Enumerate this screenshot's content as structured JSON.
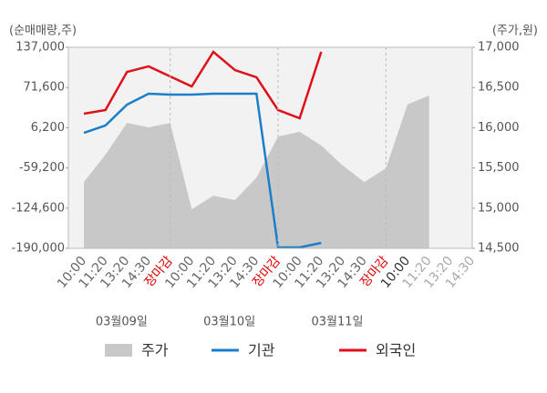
{
  "chart_data": {
    "type": "line",
    "y_axis_label": "(순매매량,주)",
    "y2_axis_label": "(주가,원)",
    "categories": [
      "10:00",
      "11:20",
      "13:20",
      "14:30",
      "장마감",
      "10:00",
      "11:20",
      "13:20",
      "14:30",
      "장마감",
      "10:00",
      "11:20",
      "13:20",
      "14:30",
      "장마감",
      "10:00",
      "11:20",
      "13:20",
      "14:30"
    ],
    "category_colors": [
      "#666",
      "#666",
      "#666",
      "#666",
      "#e00000",
      "#666",
      "#666",
      "#666",
      "#666",
      "#e00000",
      "#666",
      "#666",
      "#666",
      "#666",
      "#e00000",
      "#333",
      "#aaa",
      "#aaa",
      "#aaa"
    ],
    "date_labels": [
      "03월09일",
      "03월10일",
      "03월11일"
    ],
    "ylim": [
      -190000,
      137000
    ],
    "yticks": [
      {
        "value": -190000,
        "label": "-190,000"
      },
      {
        "value": -124600,
        "label": "-124,600"
      },
      {
        "value": -59200,
        "label": "-59,200"
      },
      {
        "value": 6200,
        "label": "6,200"
      },
      {
        "value": 71600,
        "label": "71,600"
      },
      {
        "value": 137000,
        "label": "137,000"
      }
    ],
    "y2lim": [
      14500,
      17000
    ],
    "y2ticks": [
      {
        "value": 14500,
        "label": "14,500"
      },
      {
        "value": 15000,
        "label": "15,000"
      },
      {
        "value": 15500,
        "label": "15,500"
      },
      {
        "value": 16000,
        "label": "16,000"
      },
      {
        "value": 16500,
        "label": "16,500"
      },
      {
        "value": 17000,
        "label": "17,000"
      }
    ],
    "series": [
      {
        "name": "주가",
        "color": "#c8c8c8",
        "axis": "y2",
        "kind": "area",
        "values": [
          15325,
          15665,
          16060,
          16005,
          16060,
          14985,
          15155,
          15100,
          15380,
          15890,
          15950,
          15780,
          15530,
          15325,
          15495,
          16290,
          16400,
          null,
          null
        ]
      },
      {
        "name": "기관",
        "color": "#1a7fc8",
        "kind": "line",
        "values": [
          -2100,
          9800,
          43800,
          61500,
          60000,
          60000,
          61500,
          61500,
          61500,
          -188500,
          -188500,
          -181100,
          null,
          null,
          null,
          null,
          null,
          null,
          null
        ]
      },
      {
        "name": "외국인",
        "color": "#e0101a",
        "kind": "line",
        "values": [
          29000,
          35000,
          97000,
          106000,
          89600,
          73400,
          129600,
          100000,
          88200,
          35000,
          21600,
          129600,
          null,
          null,
          null,
          null,
          null,
          null,
          null
        ]
      }
    ]
  }
}
